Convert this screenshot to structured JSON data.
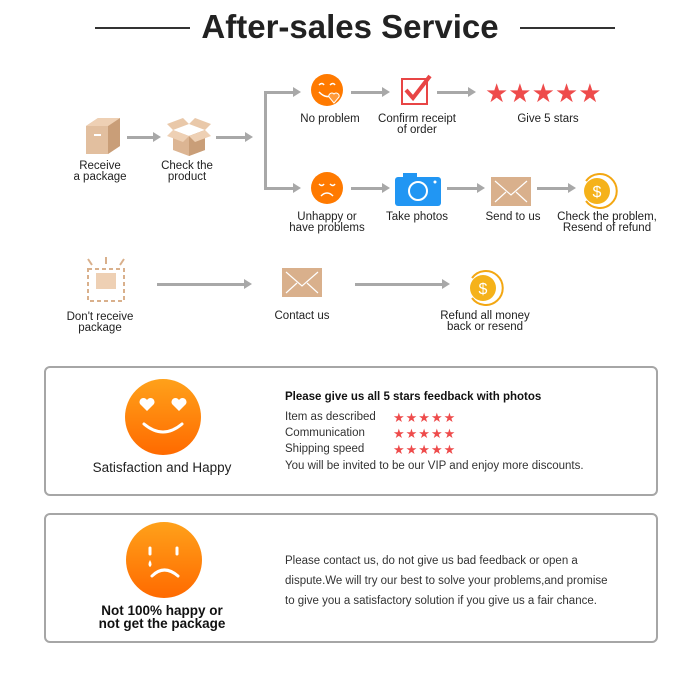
{
  "title": "After-sales Service",
  "flow": {
    "receive": "Receive\na package",
    "check": "Check the\nproduct",
    "no_problem": "No problem",
    "confirm": "Confirm receipt\nof order",
    "give_stars": "Give 5 stars",
    "unhappy": "Unhappy or\nhave problems",
    "take_photos": "Take photos",
    "send": "Send to us",
    "check_problem": "Check the problem,\nResend of refund",
    "dont_receive": "Don't receive\npackage",
    "contact": "Contact us",
    "refund": "Refund all money\nback or resend"
  },
  "happy_card": {
    "label": "Satisfaction and Happy",
    "heading": "Please give us all 5 stars feedback with photos",
    "ratings": [
      {
        "label": "Item as described",
        "stars": 5
      },
      {
        "label": "Communication",
        "stars": 5
      },
      {
        "label": "Shipping speed",
        "stars": 5
      }
    ],
    "star_glyphs": "★★★★★",
    "footer": "You will be invited to be our VIP and enjoy more discounts."
  },
  "sad_card": {
    "label": "Not 100% happy or\nnot get the package",
    "lines": [
      "Please contact us, do not give us bad feedback or open a",
      "dispute.We will try our best to solve your problems,and promise",
      "to give you a satisfactory solution if you give us a fair chance."
    ]
  },
  "colors": {
    "orange": "#ff7a00",
    "star": "#ee4b4b",
    "camera": "#2196f3",
    "box": "#d9b08c"
  }
}
